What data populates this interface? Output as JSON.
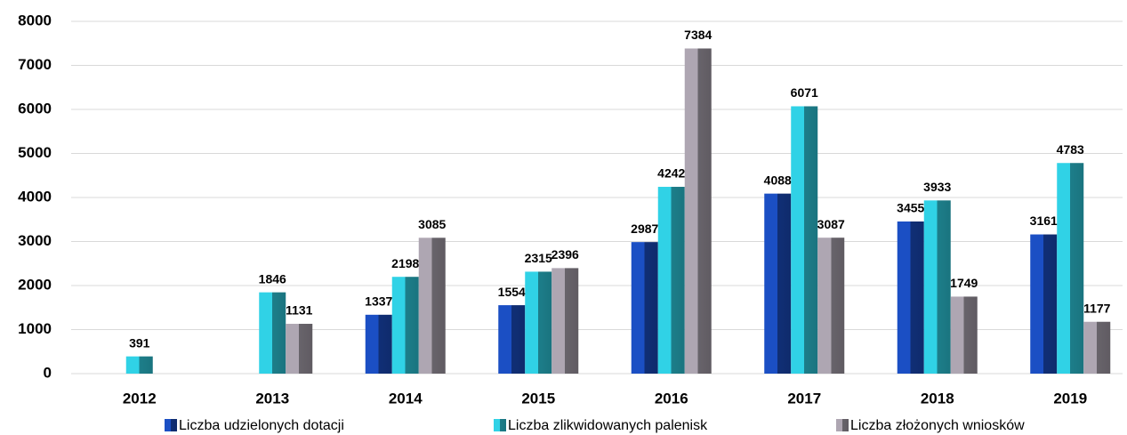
{
  "chart_data": {
    "type": "bar",
    "categories": [
      "2012",
      "2013",
      "2014",
      "2015",
      "2016",
      "2017",
      "2018",
      "2019"
    ],
    "series": [
      {
        "name": "Liczba udzielonych dotacji",
        "color": "#1b4fc4",
        "values": [
          null,
          null,
          1337,
          1554,
          2987,
          4088,
          3455,
          3161
        ]
      },
      {
        "name": "Liczba zlikwidowanych palenisk",
        "color": "#30d2e6",
        "values": [
          391,
          1846,
          2198,
          2315,
          4242,
          6071,
          3933,
          4783
        ]
      },
      {
        "name": "Liczba złożonych wniosków",
        "color": "#aea6b2",
        "values": [
          null,
          1131,
          3085,
          2396,
          7384,
          3087,
          1749,
          1177
        ]
      }
    ],
    "ylim": [
      0,
      8000
    ],
    "yticks": [
      0,
      1000,
      2000,
      3000,
      4000,
      5000,
      6000,
      7000,
      8000
    ],
    "grid": true,
    "legend": "bottom"
  }
}
